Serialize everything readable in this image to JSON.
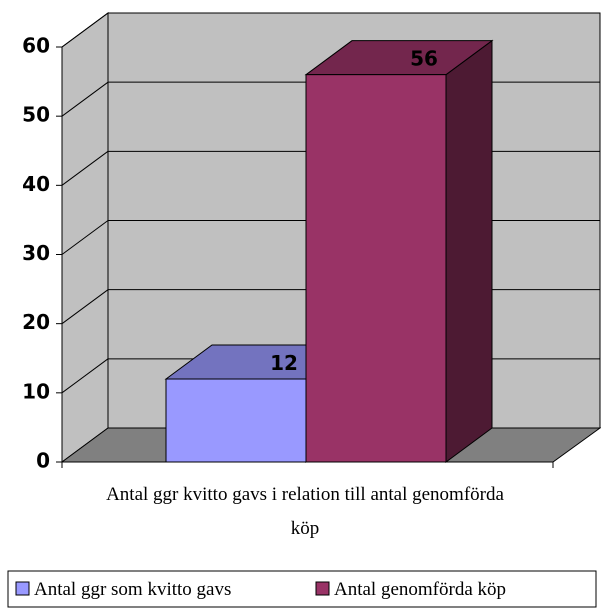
{
  "chart_data": {
    "type": "bar",
    "categories": [
      "Antal ggr kvitto gavs i relation till antal genomförda köp"
    ],
    "series": [
      {
        "name": "Antal ggr som kvitto gavs",
        "color": "#9999ff",
        "values": [
          12
        ]
      },
      {
        "name": "Antal genomförda köp",
        "color": "#993366",
        "values": [
          56
        ]
      }
    ],
    "ylim": [
      0,
      60
    ],
    "yticks": [
      0,
      10,
      20,
      30,
      40,
      50,
      60
    ],
    "grid": true,
    "legend": "bottom"
  }
}
